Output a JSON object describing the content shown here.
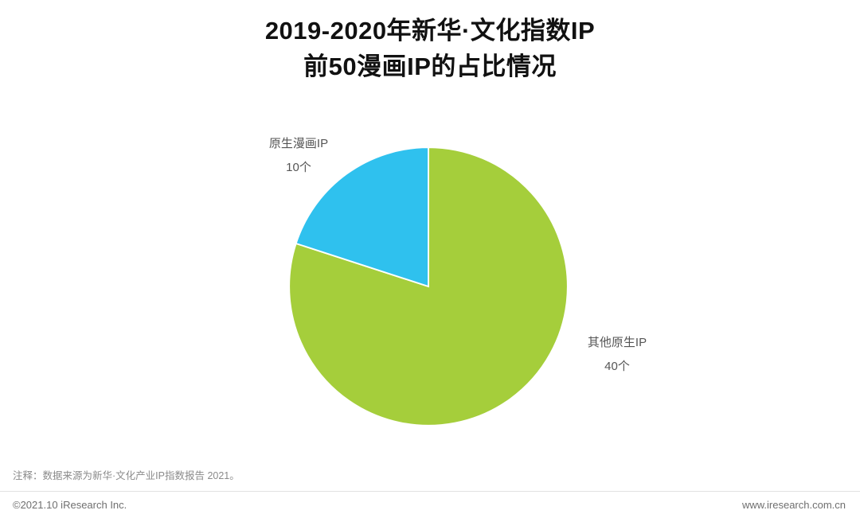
{
  "title": {
    "line1": "2019-2020年新华·文化指数IP",
    "line2": "前50漫画IP的占比情况"
  },
  "chart_data": {
    "type": "pie",
    "title": "2019-2020年新华·文化指数IP前50漫画IP的占比情况",
    "unit": "个",
    "total": 50,
    "start_angle_deg": 0,
    "direction": "clockwise",
    "legend_position": "labels-outside",
    "slices": [
      {
        "label": "其他原生IP",
        "value": 40,
        "count_label": "40个",
        "percent": 80,
        "color": "#a5ce3b"
      },
      {
        "label": "原生漫画IP",
        "value": 10,
        "count_label": "10个",
        "percent": 20,
        "color": "#2fc1ee"
      }
    ]
  },
  "footer": {
    "note": "注释：数据来源为新华·文化产业IP指数报告 2021。",
    "copyright": "©2021.10 iResearch Inc.",
    "website": "www.iresearch.com.cn"
  }
}
